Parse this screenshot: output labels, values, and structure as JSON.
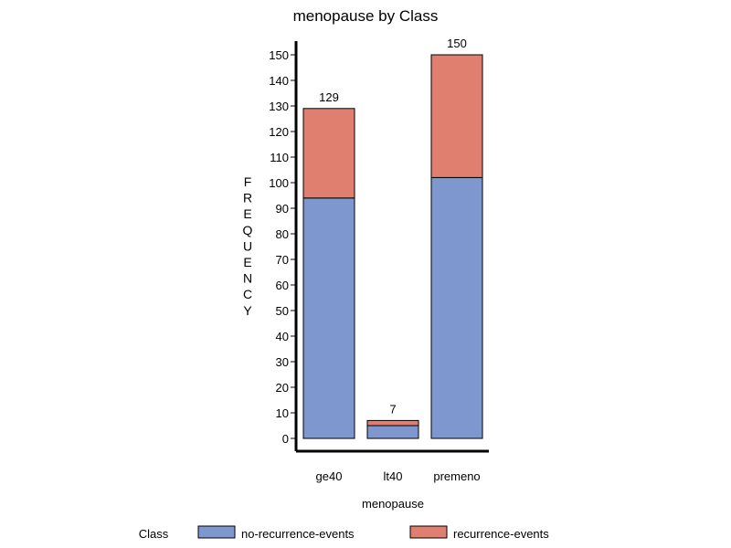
{
  "chart_data": {
    "type": "bar",
    "stacked": true,
    "title": "menopause by Class",
    "xlabel": "menopause",
    "ylabel": "FREQUENCY",
    "categories": [
      "ge40",
      "lt40",
      "premeno"
    ],
    "series": [
      {
        "name": "no-recurrence-events",
        "values": [
          94,
          5,
          102
        ],
        "color": "#7e97cf"
      },
      {
        "name": "recurrence-events",
        "values": [
          35,
          2,
          48
        ],
        "color": "#e07f6f"
      }
    ],
    "totals": [
      129,
      7,
      150
    ],
    "ylim": [
      0,
      150
    ],
    "yticks": [
      0,
      10,
      20,
      30,
      40,
      50,
      60,
      70,
      80,
      90,
      100,
      110,
      120,
      130,
      140,
      150
    ],
    "grid": false,
    "legend": {
      "title": "Class",
      "position": "bottom"
    }
  }
}
